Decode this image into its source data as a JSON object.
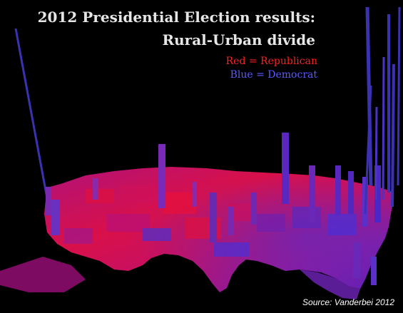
{
  "title": {
    "line1": "2012 Presidential Election results:",
    "line2": "Rural-Urban divide"
  },
  "legend": {
    "red": {
      "label": "Red = Republican",
      "color": "#ff2020"
    },
    "blue": {
      "label": "Blue = Democrat",
      "color": "#5a5aff"
    }
  },
  "source": "Source: Vanderbei 2012",
  "colors": {
    "background": "#000000",
    "republican": "#e0104e",
    "democrat": "#3a2fd6",
    "mixed": "#8a1a9a"
  }
}
